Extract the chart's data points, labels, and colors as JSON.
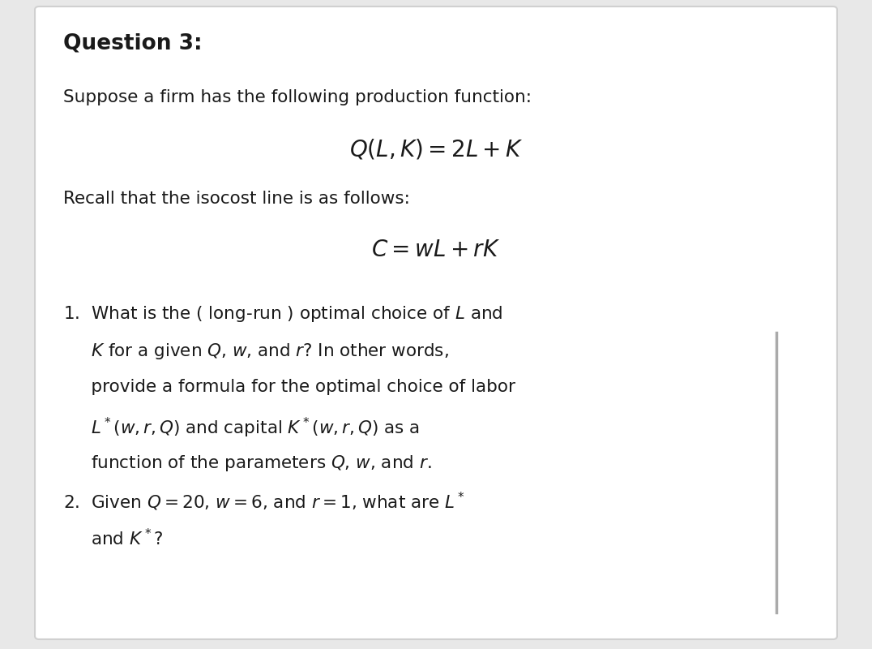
{
  "background_color": "#e8e8e8",
  "card_color": "#ffffff",
  "card_edge_color": "#d0d0d0",
  "title": "Question 3:",
  "title_fontsize": 19,
  "body_fontsize": 15.5,
  "math_fontsize": 20,
  "text_color": "#1a1a1a",
  "line_color": "#aaaaaa",
  "line1_1": "1.  What is the ( long-run ) optimal choice of $L$ and",
  "line1_2": "     $K$ for a given $Q$, $w$, and $r$? In other words,",
  "line1_3": "     provide a formula for the optimal choice of labor",
  "line1_4": "     $L^*(w, r, Q)$ and capital $K^*(w, r, Q)$ as a",
  "line1_5": "     function of the parameters $Q$, $w$, and $r$.",
  "line2_1": "2.  Given $Q = 20$, $w = 6$, and $r = 1$, what are $L^*$",
  "line2_2": "     and $K^*$?",
  "eq1": "$Q(L, K) = 2L + K$",
  "eq2": "$C = wL + rK$",
  "intro1": "Suppose a firm has the following production function:",
  "intro2": "Recall that the isocost line is as follows:"
}
